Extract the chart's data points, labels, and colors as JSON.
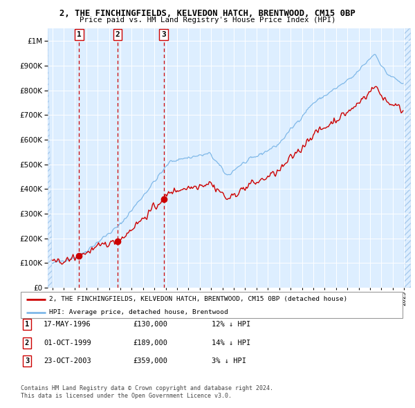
{
  "title1": "2, THE FINCHINGFIELDS, KELVEDON HATCH, BRENTWOOD, CM15 0BP",
  "title2": "Price paid vs. HM Land Registry's House Price Index (HPI)",
  "sales": [
    {
      "date": "1996-05-17",
      "price": 130000,
      "label": "1",
      "pct": "12% ↓ HPI",
      "date_str": "17-MAY-1996"
    },
    {
      "date": "1999-10-01",
      "price": 189000,
      "label": "2",
      "pct": "14% ↓ HPI",
      "date_str": "01-OCT-1999"
    },
    {
      "date": "2003-10-23",
      "price": 359000,
      "label": "3",
      "pct": "3% ↓ HPI",
      "date_str": "23-OCT-2003"
    }
  ],
  "hpi_line_color": "#7fb8e8",
  "price_line_color": "#cc0000",
  "sale_dot_color": "#cc0000",
  "dashed_line_color": "#cc0000",
  "bg_color": "#ddeeff",
  "plot_bg_color": "#ddeeff",
  "legend_label_red": "2, THE FINCHINGFIELDS, KELVEDON HATCH, BRENTWOOD, CM15 0BP (detached house)",
  "legend_label_blue": "HPI: Average price, detached house, Brentwood",
  "footer1": "Contains HM Land Registry data © Crown copyright and database right 2024.",
  "footer2": "This data is licensed under the Open Government Licence v3.0.",
  "ymax": 1050000,
  "start_year": 1994,
  "end_year": 2025,
  "sale_x": {
    "1996-05-17": 1996.37,
    "1999-10-01": 1999.75,
    "2003-10-23": 2003.81
  },
  "sale_prices": {
    "1996-05-17": 130000,
    "1999-10-01": 189000,
    "2003-10-23": 359000
  },
  "sale_labels": {
    "1996-05-17": "1",
    "1999-10-01": "2",
    "2003-10-23": "3"
  }
}
